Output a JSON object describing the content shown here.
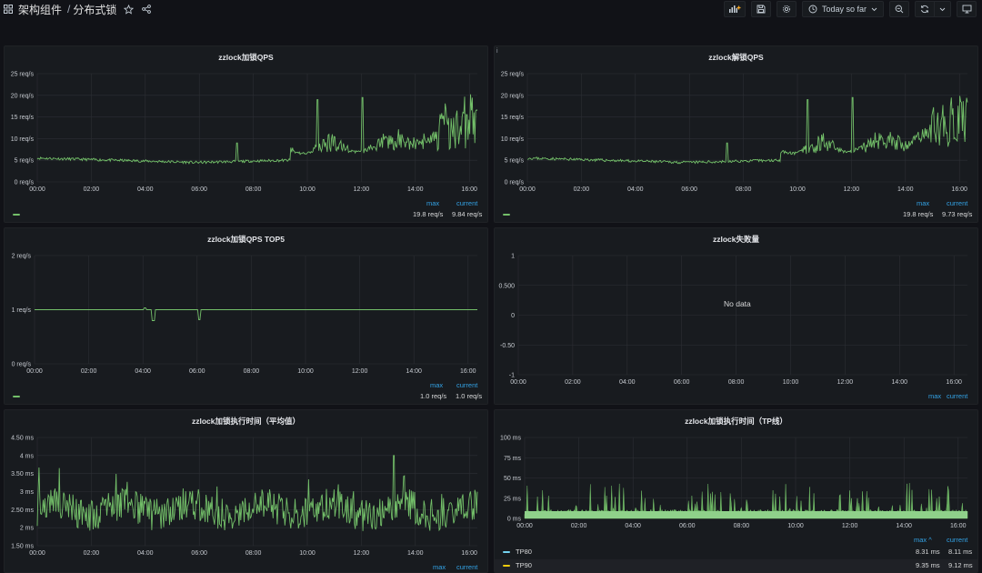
{
  "header": {
    "folder": "架构组件",
    "separator": "/",
    "dashboard": "分布式锁",
    "time_range": "Today so far"
  },
  "colors": {
    "green": "#73bf69",
    "blue": "#73d2f0",
    "yellow": "#f2cc0c",
    "link": "#33a2e5"
  },
  "x_ticks": [
    "00:00",
    "02:00",
    "04:00",
    "06:00",
    "08:00",
    "10:00",
    "12:00",
    "14:00",
    "16:00"
  ],
  "panels": {
    "qps_lock": {
      "title": "zzlock加锁QPS",
      "y_ticks": [
        "25 req/s",
        "20 req/s",
        "15 req/s",
        "10 req/s",
        "5 req/s",
        "0 req/s"
      ],
      "legend": {
        "max_label": "max",
        "current_label": "current",
        "max": "19.8 req/s",
        "current": "9.84 req/s"
      }
    },
    "qps_unlock": {
      "title": "zzlock解锁QPS",
      "info": "i",
      "y_ticks": [
        "25 req/s",
        "20 req/s",
        "15 req/s",
        "10 req/s",
        "5 req/s",
        "0 req/s"
      ],
      "legend": {
        "max_label": "max",
        "current_label": "current",
        "max": "19.8 req/s",
        "current": "9.73 req/s"
      }
    },
    "qps_top5": {
      "title": "zzlock加锁QPS TOP5",
      "y_ticks": [
        "2 req/s",
        "1 req/s",
        "0 req/s"
      ],
      "legend": {
        "max_label": "max",
        "current_label": "current",
        "max": "1.0 req/s",
        "current": "1.0 req/s"
      }
    },
    "fail_count": {
      "title": "zzlock失败量",
      "y_ticks": [
        "1",
        "0.500",
        "0",
        "-0.50",
        "-1"
      ],
      "no_data": "No data",
      "legend": {
        "max_label": "max",
        "current_label": "current"
      }
    },
    "exec_avg": {
      "title": "zzlock加锁执行时间（平均值）",
      "y_ticks": [
        "4.50 ms",
        "4 ms",
        "3.50 ms",
        "3 ms",
        "2.50 ms",
        "2 ms",
        "1.50 ms"
      ],
      "legend": {
        "max_label": "max",
        "current_label": "current"
      }
    },
    "exec_tp": {
      "title": "zzlock加锁执行时间（TP线）",
      "y_ticks": [
        "100 ms",
        "75 ms",
        "50 ms",
        "25 ms",
        "0 ms"
      ],
      "legend": {
        "max_label": "max ^",
        "current_label": "current",
        "rows": [
          {
            "name": "TP80",
            "max": "8.31 ms",
            "current": "8.11 ms"
          },
          {
            "name": "TP90",
            "max": "9.35 ms",
            "current": "9.12 ms"
          }
        ]
      }
    }
  }
}
